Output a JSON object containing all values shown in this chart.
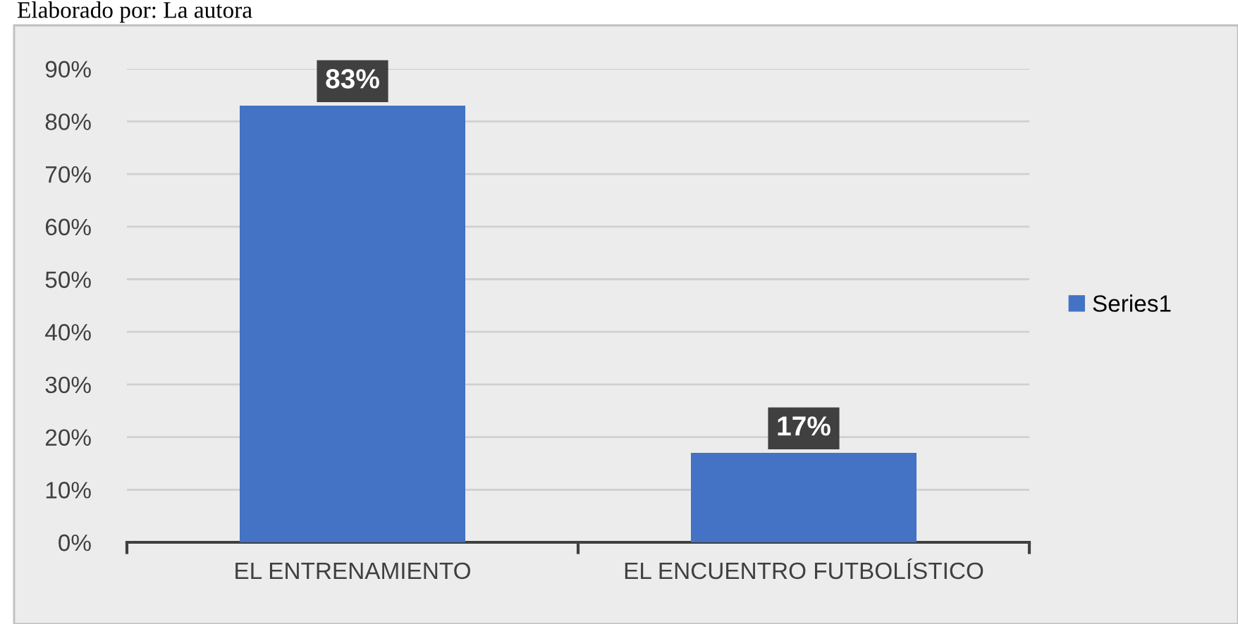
{
  "chart_data": {
    "type": "bar",
    "annotations": [
      "Elaborado por: La autora"
    ],
    "categories": [
      "EL ENTRENAMIENTO",
      "EL ENCUENTRO FUTBOLÍSTICO"
    ],
    "series": [
      {
        "name": "Series1",
        "color": "#4472c4",
        "values": [
          83,
          17
        ],
        "value_labels": [
          "83%",
          "17%"
        ]
      }
    ],
    "ylim": [
      0,
      90
    ],
    "yticks": [
      {
        "value": 0,
        "label": "0%"
      },
      {
        "value": 10,
        "label": "10%"
      },
      {
        "value": 20,
        "label": "20%"
      },
      {
        "value": 30,
        "label": "30%"
      },
      {
        "value": 40,
        "label": "40%"
      },
      {
        "value": 50,
        "label": "50%"
      },
      {
        "value": 60,
        "label": "60%"
      },
      {
        "value": 70,
        "label": "70%"
      },
      {
        "value": 80,
        "label": "80%"
      },
      {
        "value": 90,
        "label": "90%"
      }
    ],
    "grid": "y",
    "legend": "right"
  }
}
